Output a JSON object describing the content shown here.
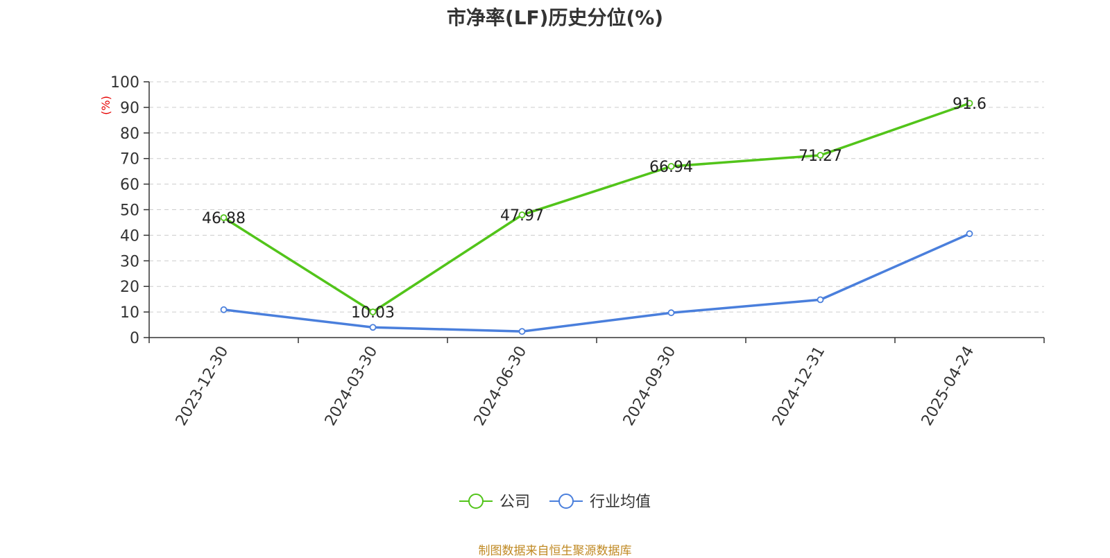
{
  "page": {
    "title": "市净率(LF)历史分位(%)",
    "source_note": "制图数据来自恒生聚源数据库"
  },
  "chart_data": {
    "type": "line",
    "title": "市净率(LF)历史分位(%)",
    "ylabel": "(%)",
    "xlabel": "",
    "ylim": [
      0,
      100
    ],
    "yticks": [
      0,
      10,
      20,
      30,
      40,
      50,
      60,
      70,
      80,
      90,
      100
    ],
    "categories": [
      "2023-12-30",
      "2024-03-30",
      "2024-06-30",
      "2024-09-30",
      "2024-12-31",
      "2025-04-24"
    ],
    "grid": true,
    "legend_position": "bottom-center",
    "series": [
      {
        "name": "公司",
        "color": "#52c41a",
        "values": [
          46.88,
          10.03,
          47.97,
          66.94,
          71.27,
          91.6
        ],
        "labels": [
          "46.88",
          "10.03",
          "47.97",
          "66.94",
          "71.27",
          "91.6"
        ]
      },
      {
        "name": "行业均值",
        "color": "#4a7fdc",
        "values": [
          10.9,
          4.0,
          2.4,
          9.7,
          14.8,
          40.6
        ],
        "labels": []
      }
    ]
  }
}
